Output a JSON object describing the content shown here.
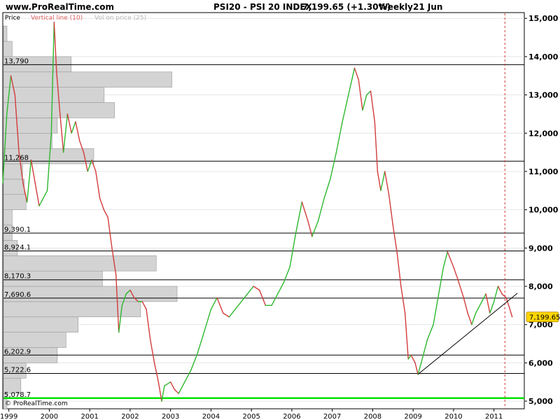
{
  "header": {
    "site": "www.ProRealTime.com",
    "title": "PSI20 - PSI 20 INDEX",
    "quote": "7,199.65 (+1.30%)",
    "period": "Weekly",
    "date": "21 Jun"
  },
  "legend": {
    "price": "Price",
    "vertical_line": "Vertical line (10)",
    "vol_on_price": "Vol on price (25)"
  },
  "footer": {
    "copyright": "© ProRealTime.com"
  },
  "colors": {
    "up": "#2db82d",
    "down": "#d23c3c",
    "highlight_line": "#00e000",
    "volume_bar": "#d3d3d3",
    "vertical_line": "#d23c3c",
    "last_price_tag": "#ffd700"
  },
  "chart_data": {
    "type": "line",
    "title": "PSI20 - PSI 20 INDEX",
    "frequency": "Weekly",
    "last_value": 7199.65,
    "last_value_label": "7,199.65",
    "change_pct": 1.3,
    "xlim": [
      1998.85,
      2011.75
    ],
    "ylim": [
      4800,
      15150
    ],
    "x_ticks": [
      1999,
      2000,
      2001,
      2002,
      2003,
      2004,
      2005,
      2006,
      2007,
      2008,
      2009,
      2010,
      2011
    ],
    "y_ticks": [
      5000,
      6000,
      7000,
      8000,
      9000,
      10000,
      11000,
      12000,
      13000,
      14000,
      15000
    ],
    "y_tick_labels": [
      "5,000",
      "6,000",
      "7,000",
      "8,000",
      "9,000",
      "10,000",
      "11,000",
      "12,000",
      "13,000",
      "14,000",
      "15,000"
    ],
    "series": [
      {
        "points": [
          [
            1998.85,
            10700
          ],
          [
            1998.95,
            12500
          ],
          [
            1999.05,
            13500
          ],
          [
            1999.15,
            13000
          ],
          [
            1999.25,
            11500
          ],
          [
            1999.35,
            10700
          ],
          [
            1999.45,
            10200
          ],
          [
            1999.55,
            11300
          ],
          [
            1999.65,
            10700
          ],
          [
            1999.75,
            10100
          ],
          [
            1999.85,
            10300
          ],
          [
            1999.95,
            10500
          ],
          [
            2000.05,
            12000
          ],
          [
            2000.12,
            14900
          ],
          [
            2000.18,
            13600
          ],
          [
            2000.25,
            12700
          ],
          [
            2000.35,
            11500
          ],
          [
            2000.45,
            12500
          ],
          [
            2000.55,
            12000
          ],
          [
            2000.65,
            12300
          ],
          [
            2000.75,
            11800
          ],
          [
            2000.85,
            11500
          ],
          [
            2000.95,
            11000
          ],
          [
            2001.05,
            11300
          ],
          [
            2001.15,
            11000
          ],
          [
            2001.25,
            10300
          ],
          [
            2001.35,
            10000
          ],
          [
            2001.45,
            9800
          ],
          [
            2001.55,
            9000
          ],
          [
            2001.65,
            8300
          ],
          [
            2001.72,
            6800
          ],
          [
            2001.8,
            7500
          ],
          [
            2001.9,
            7800
          ],
          [
            2002.0,
            7900
          ],
          [
            2002.1,
            7700
          ],
          [
            2002.2,
            7600
          ],
          [
            2002.3,
            7600
          ],
          [
            2002.4,
            7400
          ],
          [
            2002.5,
            6600
          ],
          [
            2002.6,
            6000
          ],
          [
            2002.7,
            5500
          ],
          [
            2002.78,
            5000
          ],
          [
            2002.85,
            5400
          ],
          [
            2003.0,
            5500
          ],
          [
            2003.1,
            5300
          ],
          [
            2003.2,
            5200
          ],
          [
            2003.35,
            5500
          ],
          [
            2003.5,
            5800
          ],
          [
            2003.65,
            6200
          ],
          [
            2003.8,
            6700
          ],
          [
            2004.0,
            7400
          ],
          [
            2004.15,
            7700
          ],
          [
            2004.3,
            7300
          ],
          [
            2004.45,
            7200
          ],
          [
            2004.6,
            7400
          ],
          [
            2004.75,
            7600
          ],
          [
            2004.9,
            7800
          ],
          [
            2005.05,
            8000
          ],
          [
            2005.2,
            7900
          ],
          [
            2005.35,
            7500
          ],
          [
            2005.5,
            7500
          ],
          [
            2005.65,
            7800
          ],
          [
            2005.8,
            8100
          ],
          [
            2005.95,
            8500
          ],
          [
            2006.1,
            9400
          ],
          [
            2006.25,
            10200
          ],
          [
            2006.4,
            9700
          ],
          [
            2006.5,
            9300
          ],
          [
            2006.65,
            9700
          ],
          [
            2006.8,
            10300
          ],
          [
            2006.95,
            10800
          ],
          [
            2007.1,
            11500
          ],
          [
            2007.25,
            12300
          ],
          [
            2007.4,
            13000
          ],
          [
            2007.55,
            13700
          ],
          [
            2007.65,
            13400
          ],
          [
            2007.75,
            12600
          ],
          [
            2007.85,
            13000
          ],
          [
            2007.95,
            13100
          ],
          [
            2008.05,
            12300
          ],
          [
            2008.12,
            11000
          ],
          [
            2008.2,
            10500
          ],
          [
            2008.3,
            11000
          ],
          [
            2008.4,
            10400
          ],
          [
            2008.5,
            9600
          ],
          [
            2008.6,
            8900
          ],
          [
            2008.7,
            8000
          ],
          [
            2008.8,
            7300
          ],
          [
            2008.88,
            6100
          ],
          [
            2008.95,
            6200
          ],
          [
            2009.05,
            6000
          ],
          [
            2009.12,
            5700
          ],
          [
            2009.2,
            6000
          ],
          [
            2009.35,
            6600
          ],
          [
            2009.5,
            7000
          ],
          [
            2009.6,
            7600
          ],
          [
            2009.75,
            8500
          ],
          [
            2009.85,
            8900
          ],
          [
            2010.0,
            8500
          ],
          [
            2010.1,
            8200
          ],
          [
            2010.25,
            7700
          ],
          [
            2010.35,
            7300
          ],
          [
            2010.45,
            7000
          ],
          [
            2010.55,
            7300
          ],
          [
            2010.7,
            7600
          ],
          [
            2010.8,
            7800
          ],
          [
            2010.9,
            7300
          ],
          [
            2011.0,
            7600
          ],
          [
            2011.1,
            8000
          ],
          [
            2011.2,
            7800
          ],
          [
            2011.3,
            7700
          ],
          [
            2011.38,
            7450
          ],
          [
            2011.45,
            7200
          ]
        ]
      }
    ],
    "horizontal_levels": [
      {
        "value": 13790,
        "label": "13,790"
      },
      {
        "value": 11268,
        "label": "11,268"
      },
      {
        "value": 9390.1,
        "label": "9,390.1"
      },
      {
        "value": 8924.1,
        "label": "8,924.1"
      },
      {
        "value": 8170.3,
        "label": "8,170.3"
      },
      {
        "value": 7690.6,
        "label": "7,690.6"
      },
      {
        "value": 6202.9,
        "label": "6,202.9"
      },
      {
        "value": 5722.6,
        "label": "5,722.6"
      },
      {
        "value": 5078.7,
        "label": "5,078.7",
        "highlight": true
      }
    ],
    "trendline": {
      "from": [
        2009.12,
        5700
      ],
      "to": [
        2011.58,
        7820
      ]
    },
    "vertical_marker_x": 2011.27,
    "volume_profile": {
      "label": "Vol on price (25)",
      "bins": [
        {
          "low": 4800,
          "high": 5200,
          "relative": 0.02
        },
        {
          "low": 5200,
          "high": 5600,
          "relative": 0.1
        },
        {
          "low": 5600,
          "high": 6000,
          "relative": 0.13
        },
        {
          "low": 6000,
          "high": 6400,
          "relative": 0.31
        },
        {
          "low": 6400,
          "high": 6800,
          "relative": 0.36
        },
        {
          "low": 6800,
          "high": 7200,
          "relative": 0.43
        },
        {
          "low": 7200,
          "high": 7600,
          "relative": 0.79
        },
        {
          "low": 7600,
          "high": 8000,
          "relative": 1.0
        },
        {
          "low": 8000,
          "high": 8400,
          "relative": 0.57
        },
        {
          "low": 8400,
          "high": 8800,
          "relative": 0.88
        },
        {
          "low": 8800,
          "high": 9200,
          "relative": 0.08
        },
        {
          "low": 9200,
          "high": 9600,
          "relative": 0.05
        },
        {
          "low": 9600,
          "high": 10000,
          "relative": 0.05
        },
        {
          "low": 10000,
          "high": 10400,
          "relative": 0.13
        },
        {
          "low": 10400,
          "high": 10800,
          "relative": 0.12
        },
        {
          "low": 10800,
          "high": 11200,
          "relative": 0.11
        },
        {
          "low": 11200,
          "high": 11600,
          "relative": 0.52
        },
        {
          "low": 11600,
          "high": 12000,
          "relative": 0.28
        },
        {
          "low": 12000,
          "high": 12400,
          "relative": 0.31
        },
        {
          "low": 12400,
          "high": 12800,
          "relative": 0.64
        },
        {
          "low": 12800,
          "high": 13200,
          "relative": 0.58
        },
        {
          "low": 13200,
          "high": 13600,
          "relative": 0.97
        },
        {
          "low": 13600,
          "high": 14000,
          "relative": 0.39
        },
        {
          "low": 14000,
          "high": 14400,
          "relative": 0.05
        },
        {
          "low": 14400,
          "high": 14800,
          "relative": 0.02
        }
      ]
    }
  }
}
